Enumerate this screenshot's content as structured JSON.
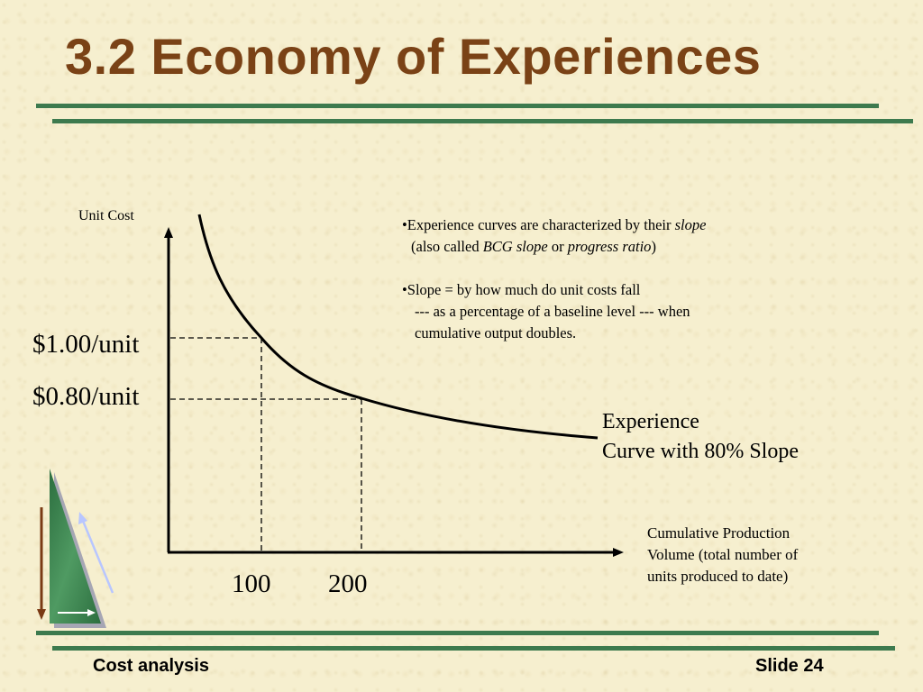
{
  "slide": {
    "title": "3.2 Economy of Experiences",
    "footer_left": "Cost analysis",
    "footer_right": "Slide 24"
  },
  "diagram": {
    "y_axis_label": "Unit Cost",
    "cost_labels": [
      "$1.00/unit",
      "$0.80/unit"
    ],
    "volume_labels": [
      "100",
      "200"
    ],
    "curve_label_line1": "Experience",
    "curve_label_line2": "Curve with 80% Slope",
    "x_axis_label_line1": "Cumulative Production",
    "x_axis_label_line2": "Volume (total number of",
    "x_axis_label_line3": "units produced to date)"
  },
  "notes": {
    "b1_pre": "•Experience curves are characterized by their ",
    "b1_slope": "slope",
    "b1_line2_pre": "(also called ",
    "b1_bcg": "BCG slope",
    "b1_or": " or ",
    "b1_progress": "progress ratio",
    "b1_close": ")",
    "b2_line1": "•Slope = by how much do unit costs fall",
    "b2_line2": "--- as a percentage of a baseline level --- when",
    "b2_line3": "cumulative output  doubles."
  },
  "colors": {
    "title": "#7a4216",
    "rule": "#3d7a4e",
    "triangle": "#2f7a44"
  }
}
